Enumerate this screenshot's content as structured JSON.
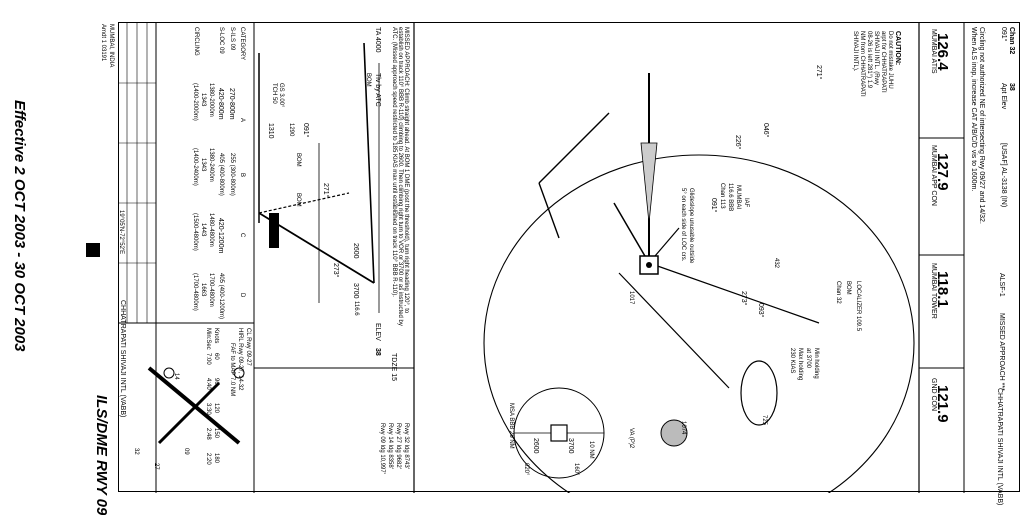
{
  "footer": {
    "effective": "Effective 2 OCT 2003 - 30 OCT 2003",
    "procedure_title": "ILS/DME RWY 09",
    "location": "MUMBAI, INDIA",
    "amdt": "Amdt 1 03191",
    "airport": "CHHATRAPATI SHIVAJI INTL  (VABB)",
    "coords": "19°05'N-72°52'E"
  },
  "header": {
    "airport_right": "CHHATRAPATI SHIVAJI INTL  (VABB)",
    "notes": [
      "When ALS inop, increase CAT A/B/C/D vis to 1600m.",
      "Circling not authorized NE of intersecting Rwy 09/27 and 14/32."
    ],
    "chart_id": "Chan 32",
    "course": "091°",
    "apt_elev_label": "Apt Elev",
    "apt_elev": "38",
    "agency": "[USAF] AL-3138 (IN)",
    "lighting": "ALSF-1",
    "missed_approach": "MISSED APPROACH ***"
  },
  "frequencies": [
    {
      "name": "MUMBAI ATIS",
      "value": "126.4"
    },
    {
      "name": "MUMBAI APP CON",
      "value": "127.9"
    },
    {
      "name": "MUMBAI TOWER",
      "value": "118.1"
    },
    {
      "name": "GND CON",
      "value": "121.9"
    }
  ],
  "plan": {
    "caution": "CAUTION:",
    "caution_text": [
      "Do not mistake JUHU",
      "arpt for CHHATRAPATI",
      "SHIVAJI INTL. (Rwy",
      "08-26 is left 281°) 1.9",
      "NM from CHHATRAPATI",
      "SHIVAJI INTL)."
    ],
    "iaf_box": [
      "IAF",
      "MUMBAI",
      "116.6 BBB",
      "Chan 113"
    ],
    "localizer_box": [
      "LOCALIZER 109.5",
      "BOM",
      "Chan 32"
    ],
    "holding": [
      "Min holding",
      "at 3700",
      "Max holding",
      "230 KIAS"
    ],
    "glideslope": [
      "Glideslope unusable outside",
      "5° on each side of LOC crs."
    ],
    "bearings": [
      "271°",
      "046°",
      "226°",
      "091°",
      "093°",
      "273°"
    ],
    "elevs": [
      "432",
      "1017",
      "1074",
      "725"
    ],
    "va": "VA (P)2",
    "ring": "10 NM",
    "msa": [
      "MSA BBB 25 NM",
      "020°",
      "160°",
      "2600",
      "3700"
    ]
  },
  "profile": {
    "missed": "MISSED APPROACH: Climb straight ahead. At BOM 1 DME (post the threshold), turn right heading 120°, to establish on track 110° BBB R-110) climbing to 2600. Then climbing right turn to VOR or 3700 or as instructed by ATC. (Missed approach speed restricted to 185 KIAS max until established on track 110° BBB R-110).",
    "ta": "TA 4000",
    "ta_by": "Tlv by ATC",
    "alts": [
      "2600",
      "3700",
      "1310",
      "1290"
    ],
    "gs": [
      "GS 3.00°",
      "TCH 50"
    ],
    "tdze": "TDZE 15",
    "elev_label": "ELEV",
    "elev": "38",
    "bbb_freq": "116.6",
    "crs": [
      "091°",
      "271°",
      "273°"
    ],
    "fixes": [
      "BOM",
      "BOM",
      "BOM"
    ]
  },
  "minima": {
    "categories": [
      "CATEGORY",
      "A",
      "B",
      "C",
      "D"
    ],
    "rows": [
      {
        "label": "S-ILS 09",
        "values": [
          "270-800m",
          "255 (300-800m)"
        ]
      },
      {
        "label": "S-LOC 09",
        "values": [
          "420-800m",
          "405 (400-800m)",
          "420-1200m",
          "405 (400-1200m)"
        ]
      },
      {
        "label": "CIRCLING",
        "values": [
          "1380-2000m",
          "1343",
          "(1400-2000m)",
          "1380-2400m",
          "1343",
          "(1400-2400m)",
          "1480-4800m",
          "1443",
          "(1500-4800m)",
          "1700-4800m",
          "1663",
          "(1700-4800m)"
        ]
      }
    ]
  },
  "airport_diagram": {
    "cl": "CL Rwy 09-27",
    "hirl": "HIRL Rwy 09-27, 14-32",
    "faf_map": "FAF to MAP 7.0 NM",
    "knots": [
      "Knots",
      "60",
      "90",
      "120",
      "150",
      "180"
    ],
    "minsec": [
      "Min:Sec",
      "7:00",
      "4:40",
      "3:30",
      "2:48",
      "2:20"
    ],
    "rwy_info": [
      "Rwy 32 ldg 8743'",
      "Rwy 27 ldg 9682'",
      "Rwy 14 ldg 8358'",
      "Rwy 09 ldg 10,997'"
    ],
    "runways": [
      "09",
      "27",
      "14",
      "32"
    ]
  }
}
